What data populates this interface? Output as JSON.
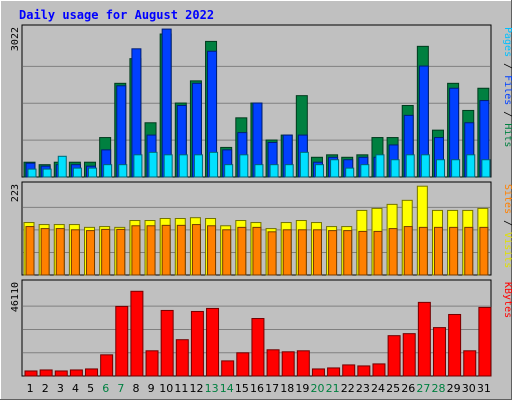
{
  "chart_data": {
    "type": "bar",
    "title": "Daily usage for August 2022",
    "days": [
      1,
      2,
      3,
      4,
      5,
      6,
      7,
      8,
      9,
      10,
      11,
      12,
      13,
      14,
      15,
      16,
      17,
      18,
      19,
      20,
      21,
      22,
      23,
      24,
      25,
      26,
      27,
      28,
      29,
      30,
      31
    ],
    "weekend_days": [
      6,
      7,
      13,
      14,
      20,
      21,
      27,
      28
    ],
    "colors": {
      "hits": "#008040",
      "files": "#0040ff",
      "pages": "#00e0ff",
      "visits": "#ffff00",
      "sites": "#ff8000",
      "kbytes": "#ff0000",
      "weekend": "#008040",
      "weekday": "#000000",
      "title": "#0000ff"
    },
    "panels": {
      "top": {
        "label_parts": [
          {
            "text": "Pages",
            "color": "#00c0ff"
          },
          {
            "text": " / ",
            "color": "#000000"
          },
          {
            "text": "Files",
            "color": "#0040ff"
          },
          {
            "text": " / ",
            "color": "#000000"
          },
          {
            "text": "Hits",
            "color": "#008040"
          }
        ],
        "max_label": "3022",
        "ylim": [
          0,
          3022
        ],
        "series": [
          {
            "key": "hits",
            "values": [
              300,
              250,
              300,
              300,
              300,
              800,
              1900,
              2400,
              1100,
              2900,
              1500,
              1950,
              2750,
              600,
              1200,
              1500,
              750,
              850,
              1650,
              400,
              450,
              400,
              450,
              800,
              800,
              1450,
              2650,
              950,
              1900,
              1350,
              1800
            ]
          },
          {
            "key": "files",
            "values": [
              280,
              220,
              250,
              250,
              220,
              550,
              1850,
              2600,
              850,
              3000,
              1450,
              1900,
              2550,
              550,
              900,
              1500,
              700,
              850,
              850,
              300,
              400,
              350,
              400,
              400,
              650,
              1250,
              2250,
              800,
              1800,
              1100,
              1550
            ]
          },
          {
            "key": "pages",
            "values": [
              160,
              160,
              420,
              180,
              180,
              250,
              250,
              450,
              500,
              450,
              450,
              450,
              500,
              250,
              450,
              250,
              250,
              250,
              500,
              250,
              350,
              180,
              250,
              450,
              350,
              450,
              450,
              350,
              350,
              450,
              350
            ]
          }
        ]
      },
      "middle": {
        "label_parts": [
          {
            "text": "Sites",
            "color": "#ff8000"
          },
          {
            "text": " / ",
            "color": "#000000"
          },
          {
            "text": "Visits",
            "color": "#e0e000"
          }
        ],
        "max_label": "223",
        "ylim": [
          0,
          223
        ],
        "series": [
          {
            "key": "visits",
            "values": [
              130,
              125,
              125,
              125,
              118,
              120,
              118,
              135,
              135,
              140,
              140,
              142,
              140,
              122,
              135,
              130,
              115,
              130,
              135,
              130,
              120,
              120,
              160,
              165,
              175,
              185,
              220,
              160,
              160,
              160,
              165
            ]
          },
          {
            "key": "sites",
            "values": [
              120,
              115,
              115,
              112,
              110,
              113,
              113,
              122,
              122,
              123,
              123,
              125,
              122,
              112,
              118,
              118,
              107,
              112,
              112,
              112,
              110,
              110,
              108,
              108,
              115,
              120,
              118,
              118,
              118,
              118,
              118
            ]
          }
        ]
      },
      "bottom": {
        "label_parts": [
          {
            "text": "KBytes",
            "color": "#ff0000"
          }
        ],
        "max_label": "46110",
        "ylim": [
          0,
          46110
        ],
        "series": [
          {
            "key": "kbytes",
            "values": [
              2500,
              3000,
              2500,
              3000,
              3500,
              10500,
              34500,
              42000,
              12500,
              32500,
              18000,
              32000,
              33500,
              7500,
              11500,
              28500,
              13000,
              12000,
              12500,
              3500,
              4000,
              5500,
              5000,
              6000,
              20000,
              21000,
              36500,
              24000,
              30500,
              12500,
              34000
            ]
          }
        ]
      }
    }
  }
}
